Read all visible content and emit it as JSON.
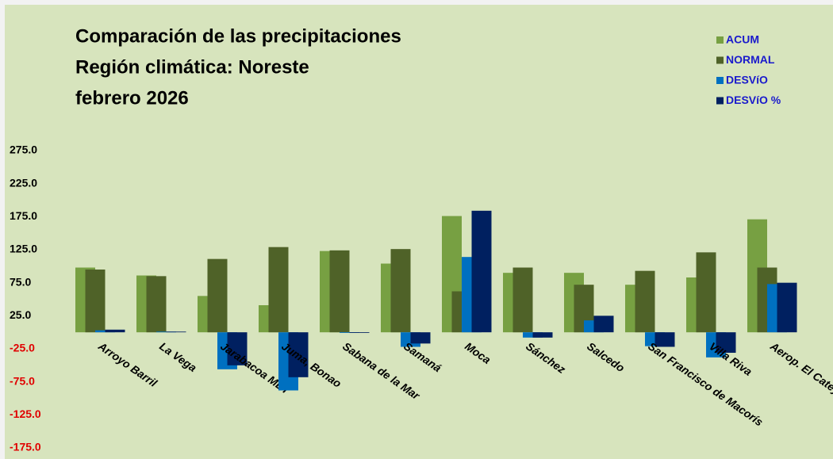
{
  "chart_data": {
    "type": "bar",
    "title": [
      "Comparación de las precipitaciones",
      "Región climática: Noreste",
      "febrero 2026"
    ],
    "categories": [
      "Arroyo Barril",
      "La Vega",
      "Jarabacoa MET",
      "Juma, Bonao",
      "Sabana de la Mar",
      "Samaná",
      "Moca",
      "Sánchez",
      "Salcedo",
      "San Francisco de Macorís",
      "Villa Riva",
      "Aerop. El Catey"
    ],
    "series": [
      {
        "name": "ACUM",
        "color": "#77a042",
        "values": [
          98,
          86,
          55,
          41,
          123,
          104,
          176,
          90,
          90,
          72,
          83,
          171
        ]
      },
      {
        "name": "NORMAL",
        "color": "#4f6228",
        "values": [
          95,
          85,
          111,
          129,
          124,
          126,
          62,
          98,
          72,
          93,
          121,
          98
        ]
      },
      {
        "name": "DESVíO",
        "color": "#0070c0",
        "values": [
          3,
          1,
          -56,
          -88,
          -1,
          -22,
          114,
          -8,
          18,
          -21,
          -38,
          73
        ]
      },
      {
        "name": "DESVíO %",
        "color": "#002060",
        "values": [
          4,
          1,
          -50,
          -68,
          -1,
          -17,
          184,
          -8,
          25,
          -22,
          -31,
          75
        ]
      }
    ],
    "ylim": [
      -175,
      275
    ],
    "yticks": [
      {
        "value": -175,
        "label": "-175.0"
      },
      {
        "value": -125,
        "label": "-125.0"
      },
      {
        "value": -75,
        "label": "-75.0"
      },
      {
        "value": -25,
        "label": "-25.0"
      },
      {
        "value": 25,
        "label": "25.0"
      },
      {
        "value": 75,
        "label": "75.0"
      },
      {
        "value": 125,
        "label": "125.0"
      },
      {
        "value": 175,
        "label": "175.0"
      },
      {
        "value": 225,
        "label": "225.0"
      },
      {
        "value": 275,
        "label": "275.0"
      }
    ],
    "grid": false,
    "legend": "top-right"
  }
}
